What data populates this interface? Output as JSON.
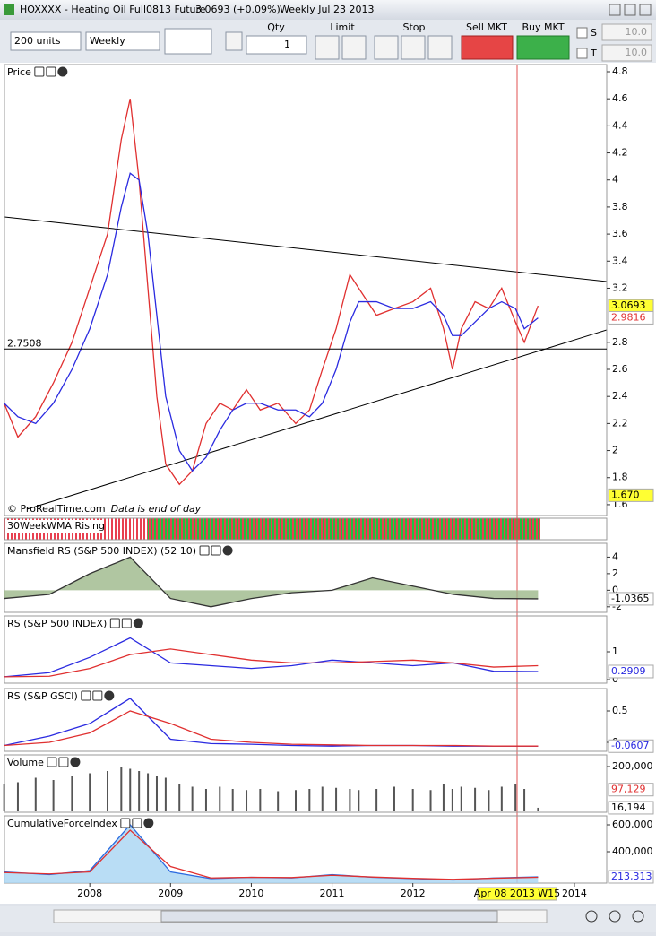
{
  "title_bar": {
    "symbol": "HOXXXX - Heating Oil Full0813 Future",
    "price": "3.0693 (+0.09%)",
    "period": "Weekly  Jul 23 2013"
  },
  "toolbar": {
    "units": "200 units",
    "period": "Weekly",
    "qty_label": "Qty",
    "qty": "1",
    "limit": "Limit",
    "stop": "Stop",
    "sell": "Sell MKT",
    "buy": "Buy MKT",
    "s": "S",
    "t": "T",
    "s_value": "10.0",
    "t_value": "10.0"
  },
  "indicator_strip": {
    "title": "30WeekWMA Rising"
  },
  "chart_data": [
    {
      "type": "line",
      "title": "Price",
      "annotation": "© ProRealTime.com",
      "annotation_note": "Data is end of day",
      "x": [
        2006.94,
        2007.11,
        2007.33,
        2007.55,
        2007.78,
        2008.0,
        2008.22,
        2008.39,
        2008.5,
        2008.61,
        2008.72,
        2008.83,
        2008.94,
        2009.11,
        2009.27,
        2009.44,
        2009.61,
        2009.77,
        2009.94,
        2010.11,
        2010.33,
        2010.55,
        2010.72,
        2010.88,
        2011.05,
        2011.22,
        2011.33,
        2011.55,
        2011.77,
        2012.0,
        2012.22,
        2012.38,
        2012.49,
        2012.6,
        2012.77,
        2012.94,
        2013.1,
        2013.27,
        2013.38,
        2013.55
      ],
      "series": [
        {
          "color": "#e03030",
          "style": "line",
          "values": [
            2.35,
            2.1,
            2.25,
            2.5,
            2.8,
            3.2,
            3.6,
            4.3,
            4.6,
            4.0,
            3.2,
            2.4,
            1.9,
            1.75,
            1.85,
            2.2,
            2.35,
            2.3,
            2.45,
            2.3,
            2.35,
            2.2,
            2.3,
            2.6,
            2.9,
            3.3,
            3.2,
            3.0,
            3.05,
            3.1,
            3.2,
            2.9,
            2.6,
            2.9,
            3.1,
            3.05,
            3.2,
            2.95,
            2.8,
            3.07
          ]
        },
        {
          "color": "#2a2ae0",
          "style": "line",
          "values": [
            2.35,
            2.25,
            2.2,
            2.35,
            2.6,
            2.9,
            3.3,
            3.8,
            4.05,
            4.0,
            3.6,
            3.0,
            2.4,
            2.0,
            1.85,
            1.95,
            2.15,
            2.3,
            2.35,
            2.35,
            2.3,
            2.3,
            2.25,
            2.35,
            2.6,
            2.95,
            3.1,
            3.1,
            3.05,
            3.05,
            3.1,
            3.0,
            2.85,
            2.85,
            2.95,
            3.05,
            3.1,
            3.05,
            2.9,
            2.98
          ]
        }
      ],
      "ylim": [
        1.52,
        4.853
      ],
      "yticks": [
        1.6,
        1.8,
        2,
        2.2,
        2.4,
        2.6,
        2.8,
        3.2,
        3.4,
        3.6,
        3.8,
        4,
        4.2,
        4.4,
        4.6,
        4.8
      ],
      "hline": {
        "value": 2.7508,
        "label": "2.7508"
      },
      "last": [
        {
          "value": 3.0693,
          "label": "3.0693",
          "bg": "#ffff33",
          "color": "#000000"
        },
        {
          "value": 2.9816,
          "label": "2.9816",
          "bg": "#ffffff",
          "color": "#e03030"
        },
        {
          "value": 1.67,
          "label": "1.670",
          "bg": "#ffff33",
          "color": "#000000"
        }
      ]
    },
    {
      "type": "line",
      "title": "Mansfield RS (S&P 500 INDEX) (52 10)",
      "x": [
        2006.94,
        2007.5,
        2008,
        2008.5,
        2009,
        2009.5,
        2010,
        2010.5,
        2011,
        2011.5,
        2012,
        2012.5,
        2013,
        2013.55
      ],
      "series": [
        {
          "color": "#333333",
          "style": "area",
          "fill": "#9cb88a",
          "values": [
            -1,
            -0.5,
            2,
            4,
            -1,
            -2,
            -1,
            -0.3,
            0,
            1.5,
            0.5,
            -0.5,
            -1,
            -1.0365
          ]
        }
      ],
      "ylim": [
        -2.67,
        5.67
      ],
      "yticks": [
        -2,
        0,
        2,
        4
      ],
      "last": [
        {
          "value": -1.0365,
          "label": "-1.0365",
          "bg": "#ffffff",
          "color": "#000000"
        }
      ]
    },
    {
      "type": "line",
      "title": "RS (S&P 500 INDEX)",
      "x": [
        2006.94,
        2007.5,
        2008,
        2008.5,
        2009,
        2009.5,
        2010,
        2010.5,
        2011,
        2011.5,
        2012,
        2012.5,
        2013,
        2013.55
      ],
      "series": [
        {
          "color": "#2a2ae0",
          "style": "line",
          "values": [
            0.1,
            0.25,
            0.8,
            1.5,
            0.6,
            0.5,
            0.4,
            0.5,
            0.7,
            0.6,
            0.5,
            0.6,
            0.3,
            0.29
          ]
        },
        {
          "color": "#e03030",
          "style": "line",
          "values": [
            0.1,
            0.12,
            0.4,
            0.9,
            1.1,
            0.9,
            0.7,
            0.6,
            0.6,
            0.65,
            0.7,
            0.6,
            0.45,
            0.5
          ]
        }
      ],
      "ylim": [
        -0.129,
        2.29
      ],
      "yticks": [
        0,
        1
      ],
      "last": [
        {
          "value": 0.2909,
          "label": "0.2909",
          "bg": "#ffffff",
          "color": "#2a2ae0"
        }
      ]
    },
    {
      "type": "line",
      "title": "RS (S&P GSCI)",
      "x": [
        2006.94,
        2007.5,
        2008,
        2008.5,
        2009,
        2009.5,
        2010,
        2010.5,
        2011,
        2011.5,
        2012,
        2012.5,
        2013,
        2013.55
      ],
      "series": [
        {
          "color": "#2a2ae0",
          "style": "line",
          "values": [
            -0.05,
            0.1,
            0.3,
            0.7,
            0.05,
            -0.02,
            -0.03,
            -0.05,
            -0.06,
            -0.05,
            -0.05,
            -0.06,
            -0.06,
            -0.06
          ]
        },
        {
          "color": "#e03030",
          "style": "line",
          "values": [
            -0.05,
            0,
            0.15,
            0.5,
            0.3,
            0.05,
            0,
            -0.03,
            -0.04,
            -0.05,
            -0.05,
            -0.05,
            -0.06,
            -0.06
          ]
        }
      ],
      "ylim": [
        -0.143,
        0.857
      ],
      "yticks": [
        0,
        0.5
      ],
      "last": [
        {
          "value": -0.0607,
          "label": "-0.0607",
          "bg": "#ffffff",
          "color": "#2a2ae0"
        }
      ]
    },
    {
      "type": "bar",
      "title": "Volume",
      "x": [
        2006.94,
        2007.11,
        2007.33,
        2007.55,
        2007.78,
        2008.0,
        2008.22,
        2008.39,
        2008.5,
        2008.61,
        2008.72,
        2008.83,
        2008.94,
        2009.11,
        2009.27,
        2009.44,
        2009.61,
        2009.77,
        2009.94,
        2010.11,
        2010.33,
        2010.55,
        2010.72,
        2010.88,
        2011.05,
        2011.22,
        2011.33,
        2011.55,
        2011.77,
        2012.0,
        2012.22,
        2012.38,
        2012.49,
        2012.6,
        2012.77,
        2012.94,
        2013.1,
        2013.27,
        2013.38,
        2013.55
      ],
      "series": [
        {
          "color": "#555555",
          "style": "bar",
          "values": [
            120000,
            130000,
            150000,
            140000,
            160000,
            170000,
            180000,
            200000,
            190000,
            180000,
            170000,
            160000,
            150000,
            120000,
            110000,
            100000,
            110000,
            100000,
            95000,
            100000,
            90000,
            95000,
            100000,
            110000,
            105000,
            100000,
            95000,
            100000,
            110000,
            100000,
            95000,
            120000,
            100000,
            110000,
            105000,
            95000,
            110000,
            120000,
            100000,
            16194
          ]
        }
      ],
      "ylim": [
        -4000,
        252000
      ],
      "yticks": [
        {
          "value": 200000,
          "label": "200,000"
        }
      ],
      "last": [
        {
          "value": 97129,
          "label": "97,129",
          "bg": "#ffffff",
          "color": "#e03030"
        },
        {
          "value": 16194,
          "label": "16,194",
          "bg": "#ffffff",
          "color": "#000000"
        }
      ]
    },
    {
      "type": "line",
      "title": "CumulativeForceIndex",
      "x": [
        2006.94,
        2007.5,
        2008,
        2008.5,
        2009,
        2009.5,
        2010,
        2010.5,
        2011,
        2011.5,
        2012,
        2012.5,
        2013,
        2013.55
      ],
      "series": [
        {
          "color": "#2a6ae0",
          "style": "area",
          "fill": "#a8d4f2",
          "values": [
            250000,
            230000,
            260000,
            600000,
            250000,
            200000,
            210000,
            205000,
            230000,
            210000,
            200000,
            190000,
            205000,
            213313
          ]
        },
        {
          "color": "#e03030",
          "style": "line",
          "values": [
            245000,
            235000,
            250000,
            560000,
            290000,
            205000,
            210000,
            208000,
            225000,
            212000,
            202000,
            195000,
            203000,
            210000
          ]
        }
      ],
      "ylim": [
        166667,
        666667
      ],
      "yticks": [
        {
          "value": 400000,
          "label": "400,000"
        },
        {
          "value": 600000,
          "label": "600,000"
        }
      ],
      "last": [
        {
          "value": 213313,
          "label": "213,313",
          "bg": "#ffffff",
          "color": "#2a2ae0"
        }
      ],
      "xlim": [
        2006.944,
        2014.4
      ],
      "xticks": [
        2008,
        2009,
        2010,
        2011,
        2012,
        2014
      ],
      "cursor_label": "Apr 08 2013 W15"
    }
  ]
}
